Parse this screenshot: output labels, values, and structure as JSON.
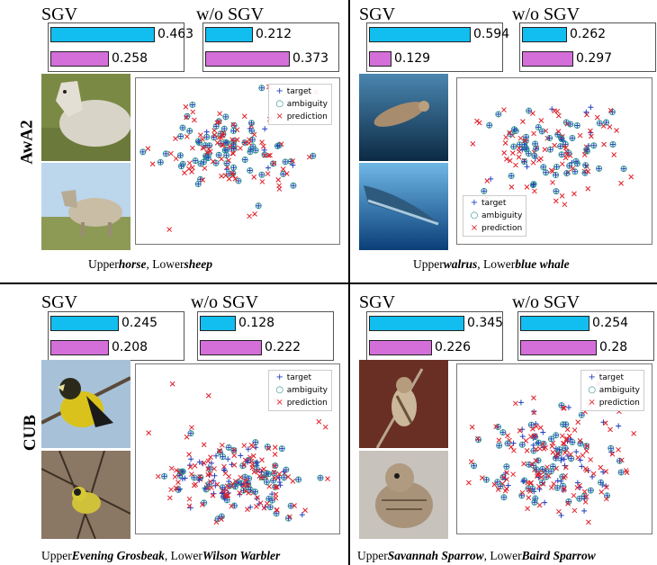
{
  "row_labels": [
    "AwA2",
    "CUB"
  ],
  "panels": [
    {
      "sgv_title": "SGV",
      "wosgv_title": "w/o SGV",
      "sgv_values": [
        "0.463",
        "0.258"
      ],
      "wosgv_values": [
        "0.212",
        "0.373"
      ],
      "caption": {
        "upper_prefix": "Upper",
        "upper": "horse",
        "lower_prefix": ", Lower",
        "lower": "sheep"
      },
      "photo_upper": "horse-photo",
      "photo_lower": "sheep-photo",
      "legend": [
        "target",
        "ambiguity",
        "prediction"
      ]
    },
    {
      "sgv_title": "SGV",
      "wosgv_title": "w/o SGV",
      "sgv_values": [
        "0.594",
        "0.129"
      ],
      "wosgv_values": [
        "0.262",
        "0.297"
      ],
      "caption": {
        "upper_prefix": "Upper",
        "upper": "walrus",
        "lower_prefix": ", Lower",
        "lower": "blue whale"
      },
      "photo_upper": "walrus-photo",
      "photo_lower": "whale-photo",
      "legend": [
        "target",
        "ambiguity",
        "prediction"
      ]
    },
    {
      "sgv_title": "SGV",
      "wosgv_title": "w/o SGV",
      "sgv_values": [
        "0.245",
        "0.208"
      ],
      "wosgv_values": [
        "0.128",
        "0.222"
      ],
      "caption": {
        "upper_prefix": "Upper",
        "upper": "Evening Grosbeak",
        "lower_prefix": ", Lower",
        "lower": "Wilson Warbler"
      },
      "photo_upper": "grosbeak-photo",
      "photo_lower": "warbler-photo",
      "legend": [
        "target",
        "ambiguity",
        "prediction"
      ]
    },
    {
      "sgv_title": "SGV",
      "wosgv_title": "w/o SGV",
      "sgv_values": [
        "0.345",
        "0.226"
      ],
      "wosgv_values": [
        "0.254",
        "0.28"
      ],
      "caption": {
        "upper_prefix": "Upper",
        "upper": "Savannah Sparrow",
        "lower_prefix": ", Lower",
        "lower": "Baird Sparrow"
      },
      "photo_upper": "savannah-sparrow-photo",
      "photo_lower": "baird-sparrow-photo",
      "legend": [
        "target",
        "ambiguity",
        "prediction"
      ]
    }
  ],
  "colors": {
    "bar_top": "#12BEF0",
    "bar_bottom": "#D46FD9",
    "target": "#1f3fbf",
    "ambiguity": "#2a8f8f",
    "prediction": "#e0202a"
  },
  "chart_data": [
    {
      "type": "bar",
      "panel": "AwA2 horse/sheep SGV",
      "series": [
        {
          "values": [
            0.463,
            0.258
          ]
        }
      ]
    },
    {
      "type": "bar",
      "panel": "AwA2 horse/sheep w/o SGV",
      "series": [
        {
          "values": [
            0.212,
            0.373
          ]
        }
      ]
    },
    {
      "type": "bar",
      "panel": "AwA2 walrus/blue whale SGV",
      "series": [
        {
          "values": [
            0.594,
            0.129
          ]
        }
      ]
    },
    {
      "type": "bar",
      "panel": "AwA2 walrus/blue whale w/o SGV",
      "series": [
        {
          "values": [
            0.262,
            0.297
          ]
        }
      ]
    },
    {
      "type": "bar",
      "panel": "CUB Evening Grosbeak/Wilson Warbler SGV",
      "series": [
        {
          "values": [
            0.245,
            0.208
          ]
        }
      ]
    },
    {
      "type": "bar",
      "panel": "CUB Evening Grosbeak/Wilson Warbler w/o SGV",
      "series": [
        {
          "values": [
            0.128,
            0.222
          ]
        }
      ]
    },
    {
      "type": "bar",
      "panel": "CUB Savannah Sparrow/Baird Sparrow SGV",
      "series": [
        {
          "values": [
            0.345,
            0.226
          ]
        }
      ]
    },
    {
      "type": "bar",
      "panel": "CUB Savannah Sparrow/Baird Sparrow w/o SGV",
      "series": [
        {
          "values": [
            0.254,
            0.28
          ]
        }
      ]
    },
    {
      "type": "scatter",
      "panel": "AwA2 horse/sheep",
      "series": [
        {
          "name": "target"
        },
        {
          "name": "ambiguity"
        },
        {
          "name": "prediction"
        }
      ],
      "legend": "top-right"
    },
    {
      "type": "scatter",
      "panel": "AwA2 walrus/blue whale",
      "series": [
        {
          "name": "target"
        },
        {
          "name": "ambiguity"
        },
        {
          "name": "prediction"
        }
      ],
      "legend": "bottom-left"
    },
    {
      "type": "scatter",
      "panel": "CUB Evening Grosbeak/Wilson Warbler",
      "series": [
        {
          "name": "target"
        },
        {
          "name": "ambiguity"
        },
        {
          "name": "prediction"
        }
      ],
      "legend": "top-right"
    },
    {
      "type": "scatter",
      "panel": "CUB Savannah Sparrow/Baird Sparrow",
      "series": [
        {
          "name": "target"
        },
        {
          "name": "ambiguity"
        },
        {
          "name": "prediction"
        }
      ],
      "legend": "top-right"
    }
  ]
}
